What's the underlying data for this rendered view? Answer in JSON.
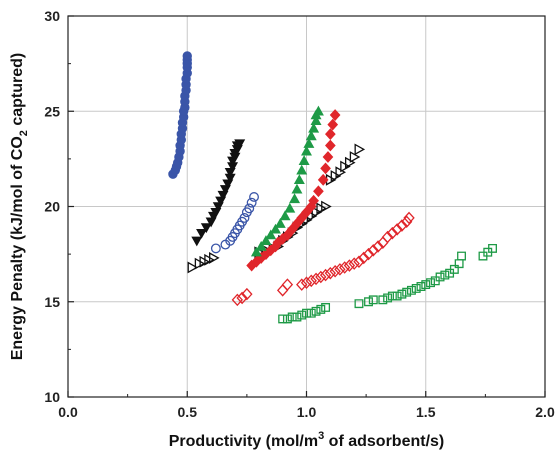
{
  "chart_data": {
    "type": "scatter",
    "xlabel": {
      "main": "Productivity (mol/m",
      "sup": "3",
      "tail": " of adsorbent/s)"
    },
    "ylabel": {
      "main": "Energy Penalty (kJ/mol of CO",
      "sub": "2",
      "tail": " captured)"
    },
    "xlim": [
      0.0,
      2.0
    ],
    "ylim": [
      10,
      30
    ],
    "x_ticks": [
      "0.0",
      "0.5",
      "1.0",
      "1.5",
      "2.0"
    ],
    "y_ticks": [
      "10",
      "15",
      "20",
      "25",
      "30"
    ],
    "grid": true,
    "series": [
      {
        "color": "#3a55a8",
        "marker": "circle-filled",
        "x": [
          0.44,
          0.45,
          0.455,
          0.46,
          0.465,
          0.47,
          0.47,
          0.475,
          0.475,
          0.48,
          0.48,
          0.485,
          0.485,
          0.49,
          0.49,
          0.49,
          0.495,
          0.495,
          0.495,
          0.5,
          0.5,
          0.5,
          0.5,
          0.5
        ],
        "y": [
          21.7,
          21.9,
          22.1,
          22.3,
          22.6,
          22.9,
          23.2,
          23.5,
          23.8,
          24.1,
          24.4,
          24.7,
          25.0,
          25.2,
          25.5,
          25.8,
          26.1,
          26.4,
          26.7,
          27.0,
          27.3,
          27.5,
          27.7,
          27.9
        ]
      },
      {
        "color": "#3a55a8",
        "marker": "circle-open",
        "x": [
          0.62,
          0.66,
          0.68,
          0.69,
          0.7,
          0.71,
          0.72,
          0.73,
          0.74,
          0.75,
          0.76,
          0.77,
          0.78
        ],
        "y": [
          17.8,
          18.0,
          18.2,
          18.4,
          18.6,
          18.8,
          19.0,
          19.2,
          19.4,
          19.7,
          19.9,
          20.2,
          20.5
        ]
      },
      {
        "color": "#111111",
        "marker": "triangle-down-filled",
        "x": [
          0.54,
          0.56,
          0.58,
          0.6,
          0.61,
          0.62,
          0.63,
          0.64,
          0.65,
          0.66,
          0.67,
          0.68,
          0.68,
          0.69,
          0.69,
          0.7,
          0.7,
          0.71,
          0.71,
          0.72
        ],
        "y": [
          18.2,
          18.6,
          18.9,
          19.2,
          19.5,
          19.7,
          20.0,
          20.3,
          20.6,
          20.9,
          21.2,
          21.5,
          21.8,
          22.1,
          22.4,
          22.6,
          22.8,
          23.0,
          23.2,
          23.3
        ]
      },
      {
        "color": "#111111",
        "marker": "triangle-right-open",
        "x": [
          0.52,
          0.55,
          0.57,
          0.59,
          0.61,
          0.8,
          0.83,
          0.86,
          0.88,
          0.9,
          0.92,
          0.94,
          0.96,
          0.98,
          1.0,
          1.02,
          1.04,
          1.06,
          1.08,
          1.1,
          1.12,
          1.14,
          1.16,
          1.18,
          1.2,
          1.22
        ],
        "y": [
          16.8,
          17.0,
          17.1,
          17.2,
          17.3,
          17.6,
          17.7,
          17.8,
          17.9,
          18.2,
          18.4,
          18.6,
          18.9,
          19.1,
          19.3,
          19.5,
          19.7,
          19.9,
          20.0,
          21.4,
          21.6,
          21.8,
          22.1,
          22.3,
          22.6,
          23.0
        ]
      },
      {
        "color": "#e0262b",
        "marker": "diamond-filled",
        "x": [
          0.77,
          0.79,
          0.81,
          0.83,
          0.85,
          0.87,
          0.88,
          0.9,
          0.92,
          0.94,
          0.96,
          0.98,
          1.0,
          1.02,
          1.03,
          1.05,
          1.07,
          1.08,
          1.09,
          1.1,
          1.1,
          1.11,
          1.12
        ],
        "y": [
          16.9,
          17.1,
          17.3,
          17.5,
          17.7,
          17.9,
          18.1,
          18.3,
          18.5,
          18.8,
          19.1,
          19.4,
          19.7,
          20.0,
          20.3,
          20.8,
          21.4,
          22.0,
          22.6,
          23.2,
          23.8,
          24.3,
          24.8
        ]
      },
      {
        "color": "#e0262b",
        "marker": "diamond-open",
        "x": [
          0.71,
          0.73,
          0.75,
          0.9,
          0.92,
          0.98,
          1.0,
          1.02,
          1.04,
          1.06,
          1.08,
          1.1,
          1.12,
          1.14,
          1.16,
          1.18,
          1.2,
          1.22,
          1.24,
          1.26,
          1.28,
          1.3,
          1.32,
          1.34,
          1.36,
          1.38,
          1.4,
          1.42,
          1.43
        ],
        "y": [
          15.1,
          15.2,
          15.4,
          15.6,
          15.9,
          15.9,
          16.0,
          16.1,
          16.2,
          16.3,
          16.4,
          16.5,
          16.6,
          16.7,
          16.8,
          16.9,
          17.0,
          17.1,
          17.3,
          17.5,
          17.7,
          17.9,
          18.1,
          18.4,
          18.6,
          18.8,
          19.0,
          19.2,
          19.4
        ]
      },
      {
        "color": "#1e9a46",
        "marker": "triangle-up-filled",
        "x": [
          0.79,
          0.81,
          0.83,
          0.85,
          0.87,
          0.89,
          0.91,
          0.93,
          0.95,
          0.96,
          0.97,
          0.98,
          0.99,
          1.0,
          1.01,
          1.02,
          1.03,
          1.04,
          1.04,
          1.05
        ],
        "y": [
          17.6,
          17.9,
          18.2,
          18.5,
          18.8,
          19.1,
          19.5,
          19.9,
          20.4,
          20.9,
          21.4,
          21.9,
          22.4,
          22.9,
          23.3,
          23.7,
          24.1,
          24.5,
          24.8,
          25.0
        ]
      },
      {
        "color": "#1e9a46",
        "marker": "square-open",
        "x": [
          0.9,
          0.92,
          0.94,
          0.96,
          0.98,
          1.0,
          1.02,
          1.04,
          1.06,
          1.08,
          1.22,
          1.26,
          1.28,
          1.32,
          1.34,
          1.36,
          1.38,
          1.4,
          1.42,
          1.44,
          1.46,
          1.48,
          1.5,
          1.52,
          1.54,
          1.56,
          1.58,
          1.6,
          1.62,
          1.64,
          1.65,
          1.74,
          1.76,
          1.78
        ],
        "y": [
          14.1,
          14.1,
          14.2,
          14.2,
          14.3,
          14.4,
          14.4,
          14.5,
          14.6,
          14.7,
          14.9,
          15.0,
          15.1,
          15.1,
          15.2,
          15.3,
          15.3,
          15.4,
          15.5,
          15.6,
          15.7,
          15.8,
          15.9,
          16.0,
          16.1,
          16.3,
          16.4,
          16.5,
          16.7,
          17.0,
          17.4,
          17.4,
          17.6,
          17.8
        ]
      }
    ]
  }
}
